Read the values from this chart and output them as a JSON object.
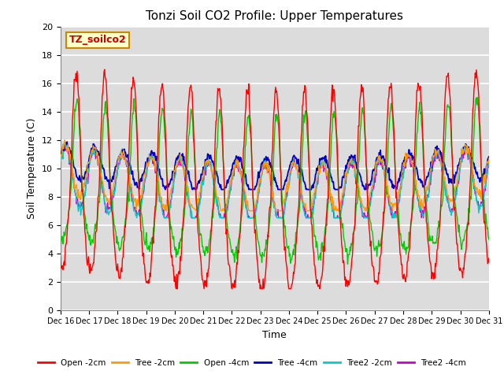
{
  "title": "Tonzi Soil CO2 Profile: Upper Temperatures",
  "xlabel": "Time",
  "ylabel": "Soil Temperature (C)",
  "ylim": [
    0,
    20
  ],
  "annotation": "TZ_soilco2",
  "annotation_box_color": "#ffffcc",
  "annotation_box_edge": "#cc8800",
  "xtick_labels": [
    "Dec 16",
    "Dec 17",
    "Dec 18",
    "Dec 19",
    "Dec 20",
    "Dec 21",
    "Dec 22",
    "Dec 23",
    "Dec 24",
    "Dec 25",
    "Dec 26",
    "Dec 27",
    "Dec 28",
    "Dec 29",
    "Dec 30",
    "Dec 31"
  ],
  "legend_entries": [
    "Open -2cm",
    "Tree -2cm",
    "Open -4cm",
    "Tree -4cm",
    "Tree2 -2cm",
    "Tree2 -4cm"
  ],
  "legend_colors": [
    "#ff0000",
    "#ff9900",
    "#00cc00",
    "#0000cc",
    "#00cccc",
    "#cc00cc"
  ],
  "n_days": 15,
  "pts_per_day": 48
}
